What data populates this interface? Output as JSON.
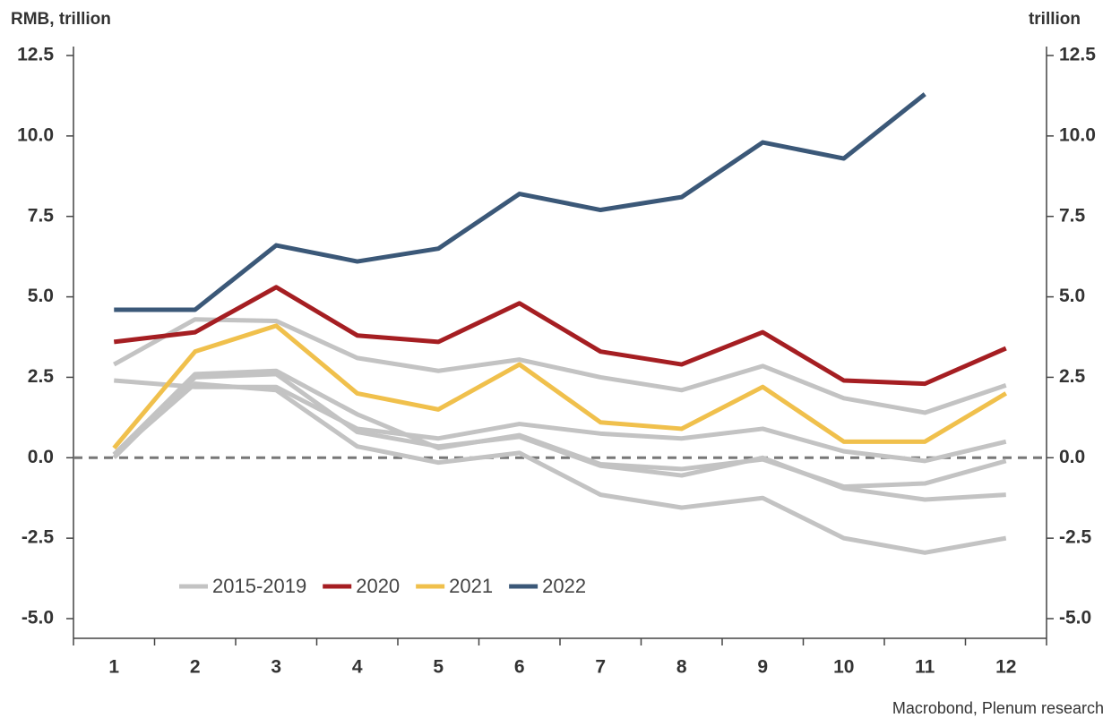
{
  "chart_data": {
    "type": "line",
    "ylabel": "RMB, trillion",
    "y2label": "trillion",
    "source": "Macrobond, Plenum research",
    "categories": [
      1,
      2,
      3,
      4,
      5,
      6,
      7,
      8,
      9,
      10,
      11,
      12
    ],
    "ylim": [
      -5,
      12.5
    ],
    "yticks": [
      {
        "value": 12.5,
        "label": "12.5"
      },
      {
        "value": 10,
        "label": "10.0"
      },
      {
        "value": 7.5,
        "label": "7.5"
      },
      {
        "value": 5,
        "label": "5.0"
      },
      {
        "value": 2.5,
        "label": "2.5"
      },
      {
        "value": 0,
        "label": "0.0"
      },
      {
        "value": -2.5,
        "label": "-2.5"
      },
      {
        "value": -5,
        "label": "-5.0"
      }
    ],
    "y2lim": [
      -5,
      12.5
    ],
    "y2ticks": [
      {
        "value": 12.5,
        "label": "12.5"
      },
      {
        "value": 10,
        "label": "10.0"
      },
      {
        "value": 7.5,
        "label": "7.5"
      },
      {
        "value": 5,
        "label": "5.0"
      },
      {
        "value": 2.5,
        "label": "2.5"
      },
      {
        "value": 0,
        "label": "0.0"
      },
      {
        "value": -2.5,
        "label": "-2.5"
      },
      {
        "value": -5,
        "label": "-5.0"
      }
    ],
    "zero_line": true,
    "legend": "bottom-left",
    "series": [
      {
        "name": "2015-2019",
        "color": "#c3c3c3",
        "values": [
          [
            2.9,
            4.3,
            4.25,
            3.1,
            2.7,
            3.05,
            2.5,
            2.1,
            2.85,
            1.85,
            1.4,
            2.25
          ],
          [
            2.4,
            2.2,
            2.2,
            0.9,
            0.6,
            1.05,
            0.75,
            0.6,
            0.9,
            0.2,
            -0.1,
            0.5
          ],
          [
            0.1,
            2.6,
            2.7,
            1.35,
            0.3,
            0.7,
            -0.2,
            -0.35,
            -0.05,
            -0.9,
            -0.8,
            -0.1
          ],
          [
            0.0,
            2.5,
            2.6,
            0.8,
            0.35,
            0.65,
            -0.25,
            -0.55,
            0.0,
            -0.95,
            -1.3,
            -1.15
          ],
          [
            0.1,
            2.3,
            2.1,
            0.35,
            -0.15,
            0.15,
            -1.15,
            -1.55,
            -1.25,
            -2.5,
            -2.95,
            -2.5
          ]
        ]
      },
      {
        "name": "2020",
        "color": "#a51e22",
        "values": [
          3.6,
          3.9,
          5.3,
          3.8,
          3.6,
          4.8,
          3.3,
          2.9,
          3.9,
          2.4,
          2.3,
          3.4
        ]
      },
      {
        "name": "2021",
        "color": "#f0c04c",
        "values": [
          0.3,
          3.3,
          4.1,
          2.0,
          1.5,
          2.9,
          1.1,
          0.9,
          2.2,
          0.5,
          0.5,
          2.0
        ]
      },
      {
        "name": "2022",
        "color": "#3b5878",
        "values": [
          4.6,
          4.6,
          6.6,
          6.1,
          6.5,
          8.2,
          7.7,
          8.1,
          9.8,
          9.3,
          11.3,
          null
        ]
      }
    ]
  }
}
